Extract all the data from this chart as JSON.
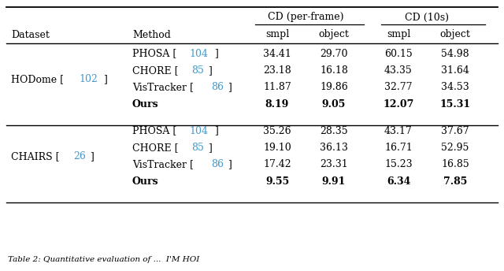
{
  "ref_color": "#4499cc",
  "text_color": "#000000",
  "bg_color": "#ffffff",
  "fs": 9.0,
  "fs_small": 7.5,
  "datasets": [
    {
      "name": "HODome",
      "name_ref": "102",
      "rows": [
        {
          "method": "PHOSA",
          "ref": "104",
          "vals": [
            "34.41",
            "29.70",
            "60.15",
            "54.98"
          ],
          "bold": false
        },
        {
          "method": "CHORE",
          "ref": "85",
          "vals": [
            "23.18",
            "16.18",
            "43.35",
            "31.64"
          ],
          "bold": false
        },
        {
          "method": "VisTracker",
          "ref": "86",
          "vals": [
            "11.87",
            "19.86",
            "32.77",
            "34.53"
          ],
          "bold": false
        },
        {
          "method": "Ours",
          "ref": "",
          "vals": [
            "8.19",
            "9.05",
            "12.07",
            "15.31"
          ],
          "bold": true
        }
      ]
    },
    {
      "name": "CHAIRS",
      "name_ref": "26",
      "rows": [
        {
          "method": "PHOSA",
          "ref": "104",
          "vals": [
            "35.26",
            "28.35",
            "43.17",
            "37.67"
          ],
          "bold": false
        },
        {
          "method": "CHORE",
          "ref": "85",
          "vals": [
            "19.10",
            "36.13",
            "16.71",
            "52.95"
          ],
          "bold": false
        },
        {
          "method": "VisTracker",
          "ref": "86",
          "vals": [
            "17.42",
            "23.31",
            "15.23",
            "16.85"
          ],
          "bold": false
        },
        {
          "method": "Ours",
          "ref": "",
          "vals": [
            "9.55",
            "9.91",
            "6.34",
            "7.85"
          ],
          "bold": true
        }
      ]
    }
  ]
}
